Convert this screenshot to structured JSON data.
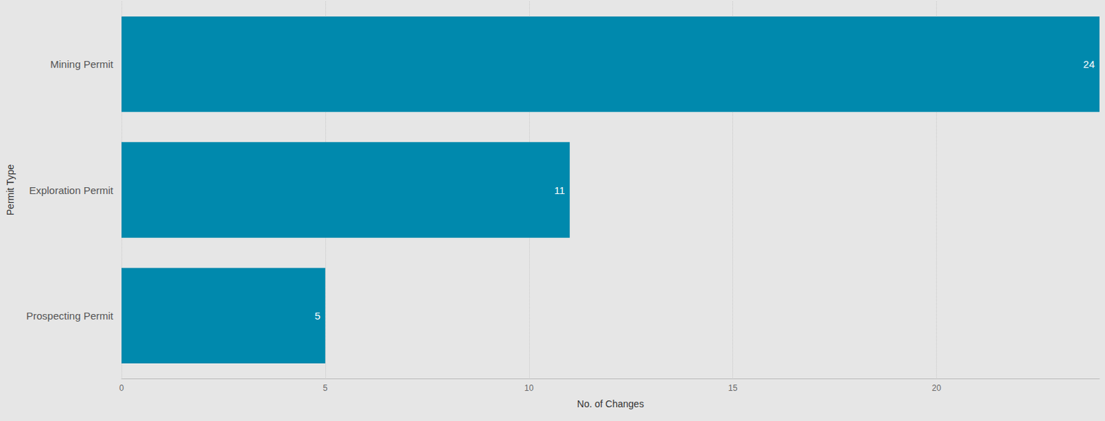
{
  "chart_data": {
    "type": "bar",
    "orientation": "horizontal",
    "x_label": "No. of Changes",
    "y_label": "Permit Type",
    "categories": [
      "Mining Permit",
      "Exploration Permit",
      "Prospecting Permit"
    ],
    "values": [
      24,
      11,
      5
    ],
    "color": "#0089ad",
    "xlim": [
      0,
      24
    ],
    "xticks": [
      0,
      5,
      10,
      15,
      20
    ],
    "grid": true,
    "data_labels": true
  }
}
